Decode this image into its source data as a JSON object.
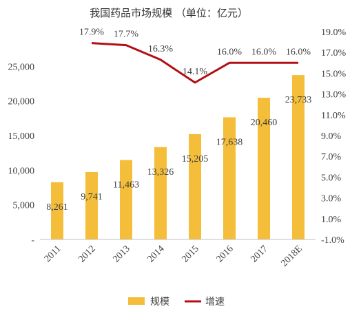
{
  "chart_data": {
    "type": "bar",
    "title": "我国药品市场规模  （单位：亿元）",
    "categories": [
      "2011",
      "2012",
      "2013",
      "2014",
      "2015",
      "2016",
      "2017",
      "2018E"
    ],
    "series": [
      {
        "name": "规模",
        "type": "bar",
        "axis": "left",
        "color": "#F4BE3A",
        "values": [
          8261,
          9741,
          11463,
          13326,
          15205,
          17638,
          20460,
          23733
        ],
        "labels": [
          "8,261",
          "9,741",
          "11,463",
          "13,326",
          "15,205",
          "17,638",
          "20,460",
          "23,733"
        ]
      },
      {
        "name": "增速",
        "type": "line",
        "axis": "right",
        "color": "#B30E14",
        "values": [
          null,
          17.9,
          17.7,
          16.3,
          14.1,
          16.0,
          16.0,
          16.0
        ],
        "labels": [
          "",
          "17.9%",
          "17.7%",
          "16.3%",
          "14.1%",
          "16.0%",
          "16.0%",
          "16.0%"
        ]
      }
    ],
    "y_left": {
      "ylim": [
        0,
        30000
      ],
      "ticks": [
        0,
        5000,
        10000,
        15000,
        20000,
        25000
      ],
      "tick_labels": [
        "-",
        "5,000",
        "10,000",
        "15,000",
        "20,000",
        "25,000"
      ]
    },
    "y_right": {
      "ylim": [
        -1.0,
        19.0
      ],
      "ticks": [
        -1,
        1,
        3,
        5,
        7,
        9,
        11,
        13,
        15,
        17,
        19
      ],
      "tick_labels": [
        "-1.0%",
        "1.0%",
        "3.0%",
        "5.0%",
        "7.0%",
        "9.0%",
        "11.0%",
        "13.0%",
        "15.0%",
        "17.0%",
        "19.0%"
      ]
    },
    "grid": false,
    "legend": {
      "position": "bottom",
      "items": [
        {
          "label": "规模",
          "color": "#F4BE3A",
          "shape": "box"
        },
        {
          "label": "增速",
          "color": "#B30E14",
          "shape": "line"
        }
      ]
    }
  }
}
